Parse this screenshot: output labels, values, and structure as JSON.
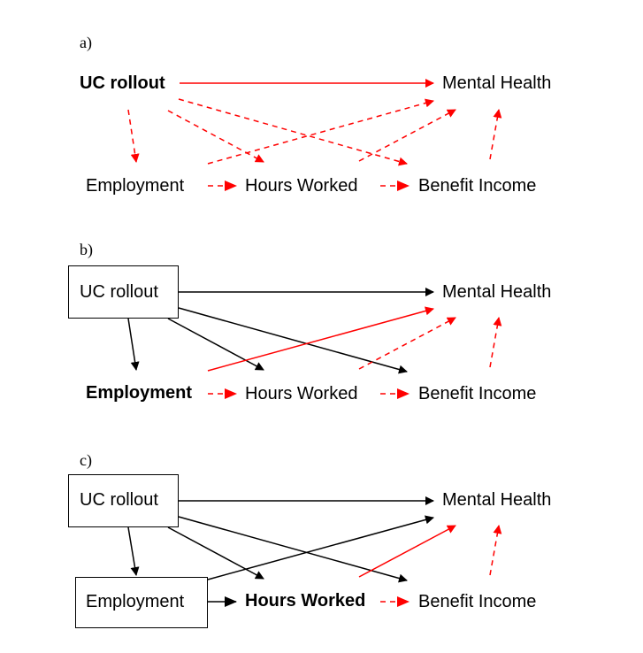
{
  "panels": [
    {
      "label": "a)",
      "nodes": {
        "uc_rollout": "UC rollout",
        "mental_health": "Mental Health",
        "employment": "Employment",
        "hours_worked": "Hours Worked",
        "benefit_income": "Benefit Income"
      },
      "bold_node": "uc_rollout",
      "boxed_nodes": []
    },
    {
      "label": "b)",
      "nodes": {
        "uc_rollout": "UC rollout",
        "mental_health": "Mental Health",
        "employment": "Employment",
        "hours_worked": "Hours Worked",
        "benefit_income": "Benefit Income"
      },
      "bold_node": "employment",
      "boxed_nodes": [
        "uc_rollout"
      ]
    },
    {
      "label": "c)",
      "nodes": {
        "uc_rollout": "UC rollout",
        "mental_health": "Mental Health",
        "employment": "Employment",
        "hours_worked": "Hours Worked",
        "benefit_income": "Benefit Income"
      },
      "bold_node": "hours_worked",
      "boxed_nodes": [
        "uc_rollout",
        "employment"
      ]
    }
  ],
  "colors": {
    "conditioned_path": "#000000",
    "open_path": "#ff0000"
  }
}
